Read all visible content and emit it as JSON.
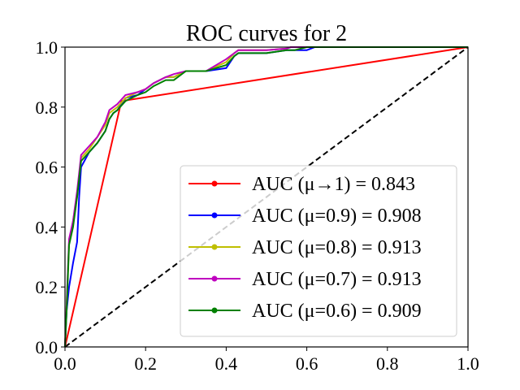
{
  "chart_data": {
    "type": "line",
    "title": "ROC curves for 2",
    "xlabel": "",
    "ylabel": "",
    "xlim": [
      0.0,
      1.0
    ],
    "ylim": [
      0.0,
      1.0
    ],
    "xticks": [
      "0.0",
      "0.2",
      "0.4",
      "0.6",
      "0.8",
      "1.0"
    ],
    "yticks": [
      "0.0",
      "0.2",
      "0.4",
      "0.6",
      "0.8",
      "1.0"
    ],
    "grid": false,
    "legend_position": "lower-right",
    "reference_line": {
      "x": [
        0,
        1
      ],
      "y": [
        0,
        1
      ],
      "color": "#000000",
      "style": "dashed"
    },
    "series": [
      {
        "name": "AUC (μ→1) = 0.843",
        "color": "#ff0000",
        "x": [
          0.0,
          0.14,
          1.0
        ],
        "y": [
          0.0,
          0.82,
          1.0
        ]
      },
      {
        "name": "AUC (μ=0.9) = 0.908",
        "color": "#0000ff",
        "x": [
          0.0,
          0.004,
          0.01,
          0.02,
          0.03,
          0.035,
          0.04,
          0.06,
          0.08,
          0.1,
          0.11,
          0.12,
          0.13,
          0.15,
          0.18,
          0.2,
          0.22,
          0.25,
          0.27,
          0.3,
          0.35,
          0.4,
          0.42,
          0.43,
          0.5,
          0.55,
          0.57,
          0.6,
          0.62,
          0.8,
          1.0
        ],
        "y": [
          0.0,
          0.12,
          0.2,
          0.28,
          0.35,
          0.5,
          0.6,
          0.65,
          0.68,
          0.72,
          0.76,
          0.78,
          0.79,
          0.83,
          0.84,
          0.86,
          0.88,
          0.9,
          0.9,
          0.92,
          0.92,
          0.93,
          0.97,
          0.98,
          0.98,
          0.99,
          0.99,
          0.99,
          1.0,
          1.0,
          1.0
        ]
      },
      {
        "name": "AUC (μ=0.8) = 0.913",
        "color": "#bfbf00",
        "x": [
          0.0,
          0.004,
          0.01,
          0.02,
          0.03,
          0.035,
          0.04,
          0.06,
          0.08,
          0.1,
          0.11,
          0.12,
          0.13,
          0.15,
          0.18,
          0.2,
          0.22,
          0.25,
          0.27,
          0.3,
          0.35,
          0.4,
          0.42,
          0.43,
          0.5,
          0.55,
          0.56,
          0.6,
          0.8,
          1.0
        ],
        "y": [
          0.0,
          0.14,
          0.35,
          0.42,
          0.5,
          0.57,
          0.63,
          0.66,
          0.7,
          0.74,
          0.78,
          0.79,
          0.8,
          0.83,
          0.85,
          0.86,
          0.88,
          0.9,
          0.9,
          0.92,
          0.92,
          0.95,
          0.98,
          0.99,
          0.99,
          0.995,
          1.0,
          1.0,
          1.0,
          1.0
        ]
      },
      {
        "name": "AUC (μ=0.7) = 0.913",
        "color": "#bf00bf",
        "x": [
          0.0,
          0.004,
          0.01,
          0.02,
          0.03,
          0.035,
          0.04,
          0.06,
          0.08,
          0.1,
          0.11,
          0.12,
          0.13,
          0.15,
          0.18,
          0.2,
          0.22,
          0.25,
          0.27,
          0.3,
          0.35,
          0.4,
          0.42,
          0.43,
          0.5,
          0.55,
          0.56,
          0.6,
          0.8,
          1.0
        ],
        "y": [
          0.0,
          0.14,
          0.36,
          0.42,
          0.52,
          0.58,
          0.64,
          0.67,
          0.7,
          0.75,
          0.79,
          0.8,
          0.81,
          0.84,
          0.85,
          0.86,
          0.88,
          0.9,
          0.91,
          0.92,
          0.92,
          0.96,
          0.98,
          0.99,
          0.99,
          0.995,
          1.0,
          1.0,
          1.0,
          1.0
        ]
      },
      {
        "name": "AUC (μ=0.6) = 0.909",
        "color": "#008000",
        "x": [
          0.0,
          0.004,
          0.01,
          0.02,
          0.03,
          0.035,
          0.04,
          0.06,
          0.08,
          0.1,
          0.11,
          0.12,
          0.13,
          0.15,
          0.18,
          0.2,
          0.22,
          0.25,
          0.27,
          0.3,
          0.35,
          0.4,
          0.42,
          0.43,
          0.5,
          0.55,
          0.57,
          0.6,
          0.8,
          1.0
        ],
        "y": [
          0.0,
          0.12,
          0.34,
          0.4,
          0.5,
          0.56,
          0.62,
          0.65,
          0.68,
          0.72,
          0.76,
          0.78,
          0.79,
          0.82,
          0.84,
          0.85,
          0.87,
          0.89,
          0.89,
          0.92,
          0.92,
          0.94,
          0.97,
          0.98,
          0.98,
          0.99,
          0.99,
          1.0,
          1.0,
          1.0
        ]
      }
    ]
  }
}
